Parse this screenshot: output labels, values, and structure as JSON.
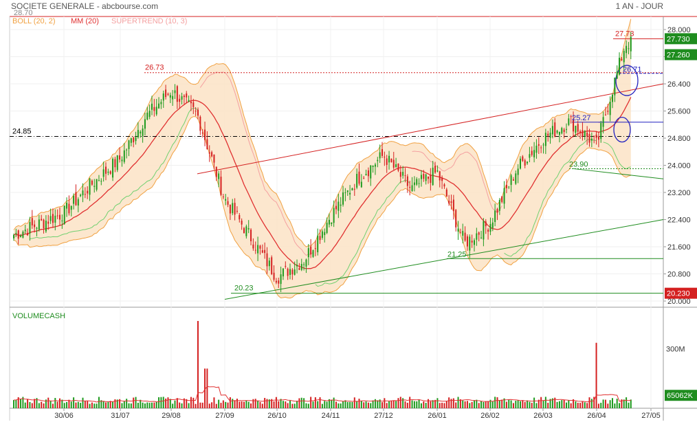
{
  "header": {
    "title": "SOCIETE GENERALE - abcbourse.com",
    "period": "1 AN - JOUR",
    "top_cut_label": "28.70"
  },
  "legend": [
    {
      "text": "BOLL (20, 2)",
      "color": "#f0a040"
    },
    {
      "text": "MM (20)",
      "color": "#e03030"
    },
    {
      "text": "SUPERTREND (10, 3)",
      "color": "#f4a0a0"
    }
  ],
  "volume_title": "VOLUMECASH",
  "price_axis": {
    "ticks": [
      "28.000",
      "27.200",
      "26.400",
      "25.600",
      "24.800",
      "24.000",
      "23.200",
      "22.400",
      "21.600",
      "20.800",
      "20.000"
    ],
    "tick_values": [
      28.0,
      27.2,
      26.4,
      25.6,
      24.8,
      24.0,
      23.2,
      22.4,
      21.6,
      20.8,
      20.0
    ],
    "min": 20.0,
    "max": 28.0
  },
  "volume_axis": {
    "ticks": [
      "300M"
    ],
    "tick_values": [
      300
    ],
    "max": 440,
    "unit": "M"
  },
  "badges": [
    {
      "text": "27.730",
      "value": 27.73,
      "color": "#1e8c1e"
    },
    {
      "text": "27.260",
      "value": 27.26,
      "color": "#1e8c1e"
    },
    {
      "text": "20.230",
      "value": 20.23,
      "color": "#d42020"
    },
    {
      "text": "65062K",
      "value_volume": 65.062,
      "color": "#1e8c1e"
    }
  ],
  "x_axis_labels": [
    "30/06",
    "31/07",
    "29/08",
    "27/09",
    "26/10",
    "24/11",
    "27/12",
    "26/01",
    "26/02",
    "26/03",
    "26/04",
    "27/05"
  ],
  "annotations": {
    "high_left": "26.73",
    "high_right": "27.73",
    "hline_left": "24.85",
    "circle_level_1": "26.71",
    "circle_level_2": "25.27",
    "low_right": "23.90",
    "low_mid": "21.25",
    "low_left": "20.23"
  },
  "chart_data": {
    "type": "candlestick",
    "title": "SOCIETE GENERALE - abcbourse.com",
    "period": "1 AN - JOUR",
    "x_labels": [
      "30/06",
      "31/07",
      "29/08",
      "27/09",
      "26/10",
      "24/11",
      "27/12",
      "26/01",
      "26/02",
      "26/03",
      "26/04",
      "27/05"
    ],
    "ylim": [
      20.0,
      28.0
    ],
    "close_anchors": [
      {
        "date": "16/06",
        "close": 21.95
      },
      {
        "date": "30/06",
        "close": 22.6
      },
      {
        "date": "14/07",
        "close": 23.4
      },
      {
        "date": "31/07",
        "close": 24.2
      },
      {
        "date": "14/08",
        "close": 25.4
      },
      {
        "date": "29/08",
        "close": 26.2
      },
      {
        "date": "12/09",
        "close": 25.5
      },
      {
        "date": "27/09",
        "close": 23.0
      },
      {
        "date": "12/10",
        "close": 21.9
      },
      {
        "date": "26/10",
        "close": 20.7
      },
      {
        "date": "09/11",
        "close": 21.2
      },
      {
        "date": "24/11",
        "close": 22.5
      },
      {
        "date": "10/12",
        "close": 23.6
      },
      {
        "date": "27/12",
        "close": 24.3
      },
      {
        "date": "12/01",
        "close": 23.3
      },
      {
        "date": "26/01",
        "close": 23.8
      },
      {
        "date": "09/02",
        "close": 21.7
      },
      {
        "date": "26/02",
        "close": 22.3
      },
      {
        "date": "12/03",
        "close": 23.9
      },
      {
        "date": "26/03",
        "close": 24.8
      },
      {
        "date": "10/04",
        "close": 25.3
      },
      {
        "date": "26/04",
        "close": 24.6
      },
      {
        "date": "10/05",
        "close": 27.6
      }
    ],
    "indicators": [
      "BOLL (20, 2)",
      "MM (20)",
      "SUPERTREND (10, 3)"
    ],
    "levels": [
      {
        "label": "26.73",
        "value": 26.73,
        "color": "#d42020",
        "style": "dotted"
      },
      {
        "label": "24.85",
        "value": 24.85,
        "color": "#000000",
        "style": "dashdot"
      },
      {
        "label": "27.73",
        "value": 27.73,
        "color": "#d42020",
        "style": "solid"
      },
      {
        "label": "26.71",
        "value": 26.71,
        "color": "#2020c0",
        "style": "dashed"
      },
      {
        "label": "25.27",
        "value": 25.27,
        "color": "#2020c0",
        "style": "solid"
      },
      {
        "label": "23.90",
        "value": 23.9,
        "color": "#1e8c1e",
        "style": "dotted"
      },
      {
        "label": "21.25",
        "value": 21.25,
        "color": "#1e8c1e",
        "style": "solid"
      },
      {
        "label": "20.23",
        "value": 20.23,
        "color": "#1e8c1e",
        "style": "solid"
      }
    ],
    "trendlines": [
      {
        "color": "#d42020",
        "from": {
          "date": "12/09",
          "price": 23.75
        },
        "to": {
          "date": "27/05",
          "price": 26.4
        }
      },
      {
        "color": "#1e8c1e",
        "from": {
          "date": "27/09",
          "price": 20.05
        },
        "to": {
          "date": "27/05",
          "price": 22.4
        }
      },
      {
        "color": "#1e8c1e",
        "from": {
          "date": "12/04",
          "price": 23.9
        },
        "to": {
          "date": "27/05",
          "price": 23.6
        }
      }
    ],
    "volume": {
      "title": "VOLUMECASH",
      "unit": "M",
      "typical": 40,
      "spikes": [
        {
          "date": "12/09",
          "value": 440
        },
        {
          "date": "15/09",
          "value": 200
        },
        {
          "date": "26/04",
          "value": 330
        }
      ],
      "last": "65062K"
    },
    "colors": {
      "up": "#1e9a1e",
      "down": "#d42020",
      "boll_fill": "#fbe3c6",
      "boll_line": "#f0a040",
      "mm": "#e03030",
      "supertrend_up": "#70d070",
      "supertrend_down": "#f4a0a0"
    }
  }
}
